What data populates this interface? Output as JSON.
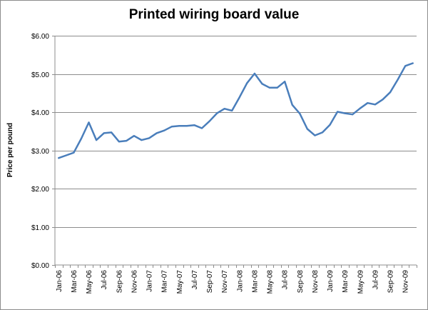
{
  "chart_data": {
    "type": "line",
    "title": "Printed wiring board value",
    "xlabel": "",
    "ylabel": "Price per pound",
    "ylim": [
      0,
      6
    ],
    "y_ticks": [
      "$0.00",
      "$1.00",
      "$2.00",
      "$3.00",
      "$4.00",
      "$5.00",
      "$6.00"
    ],
    "grid": "horizontal",
    "legend": "none",
    "line_color": "#4a7ebb",
    "grid_color": "#8c8c8c",
    "x_tick_labels": [
      "Jan-06",
      "Mar-06",
      "May-06",
      "Jul-06",
      "Sep-06",
      "Nov-06",
      "Jan-07",
      "Mar-07",
      "May-07",
      "Jul-07",
      "Sep-07",
      "Nov-07",
      "Jan-08",
      "Mar-08",
      "May-08",
      "Jul-08",
      "Sep-08",
      "Nov-08",
      "Jan-09",
      "Mar-09",
      "May-09",
      "Jul-09",
      "Sep-09",
      "Nov-09"
    ],
    "x": [
      "Jan-06",
      "Feb-06",
      "Mar-06",
      "Apr-06",
      "May-06",
      "Jun-06",
      "Jul-06",
      "Aug-06",
      "Sep-06",
      "Oct-06",
      "Nov-06",
      "Dec-06",
      "Jan-07",
      "Feb-07",
      "Mar-07",
      "Apr-07",
      "May-07",
      "Jun-07",
      "Jul-07",
      "Aug-07",
      "Sep-07",
      "Oct-07",
      "Nov-07",
      "Dec-07",
      "Jan-08",
      "Feb-08",
      "Mar-08",
      "Apr-08",
      "May-08",
      "Jun-08",
      "Jul-08",
      "Aug-08",
      "Sep-08",
      "Oct-08",
      "Nov-08",
      "Dec-08",
      "Jan-09",
      "Feb-09",
      "Mar-09",
      "Apr-09",
      "May-09",
      "Jun-09",
      "Jul-09",
      "Aug-09",
      "Sep-09",
      "Oct-09",
      "Nov-09",
      "Dec-09"
    ],
    "series": [
      {
        "values": [
          2.8,
          2.87,
          2.94,
          3.31,
          3.73,
          3.27,
          3.45,
          3.47,
          3.23,
          3.25,
          3.38,
          3.27,
          3.32,
          3.45,
          3.52,
          3.62,
          3.64,
          3.64,
          3.66,
          3.58,
          3.76,
          3.97,
          4.09,
          4.04,
          4.39,
          4.76,
          5.01,
          4.74,
          4.64,
          4.64,
          4.8,
          4.19,
          3.96,
          3.56,
          3.39,
          3.47,
          3.67,
          4.01,
          3.97,
          3.94,
          4.1,
          4.24,
          4.2,
          4.33,
          4.52,
          4.85,
          5.21,
          5.28
        ]
      }
    ]
  }
}
